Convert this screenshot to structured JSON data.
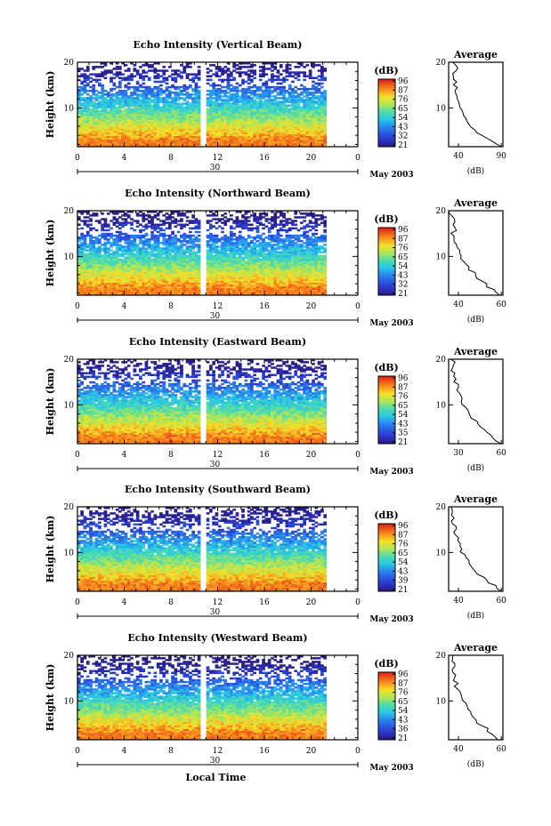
{
  "chart_data": [
    {
      "type": "heatmap",
      "title": "Echo Intensity (Vertical Beam)",
      "ylabel": "Height (km)",
      "xlabel": "",
      "x_ticks": [
        "0",
        "4",
        "8",
        "12",
        "16",
        "20",
        "0"
      ],
      "x_range": [
        0,
        24
      ],
      "data_x_range": [
        0,
        21.3
      ],
      "gap_x": 10.7,
      "y_range": [
        1.5,
        20
      ],
      "y_ticks": [
        "20",
        "10"
      ],
      "date_marker": "30",
      "date_label": "May 2003",
      "colorbar": {
        "label": "(dB)",
        "ticks": [
          "96",
          "87",
          "76",
          "65",
          "54",
          "43",
          "32",
          "21"
        ]
      },
      "profile": {
        "title": "Average",
        "xlabel": "(dB)",
        "x_ticks": [
          "40",
          "90"
        ],
        "x_range": [
          28,
          92
        ],
        "y_ticks": [
          "20",
          "10"
        ],
        "values": [
          89,
          84,
          80,
          72,
          66,
          62,
          58,
          53,
          51,
          49,
          48,
          46,
          45,
          44,
          42,
          41,
          40,
          39,
          38,
          37,
          36,
          38,
          35,
          37,
          34,
          35,
          33,
          36,
          40,
          36,
          34
        ]
      }
    },
    {
      "type": "heatmap",
      "title": "Echo Intensity (Northward Beam)",
      "ylabel": "Height (km)",
      "xlabel": "",
      "x_ticks": [
        "0",
        "4",
        "8",
        "12",
        "16",
        "20",
        "0"
      ],
      "x_range": [
        0,
        24
      ],
      "data_x_range": [
        0,
        21.3
      ],
      "gap_x": 10.7,
      "y_range": [
        1.5,
        20
      ],
      "y_ticks": [
        "20",
        "10"
      ],
      "date_marker": "30",
      "date_label": "May 2003",
      "colorbar": {
        "label": "(dB)",
        "ticks": [
          "96",
          "87",
          "76",
          "65",
          "54",
          "43",
          "32",
          "21"
        ]
      },
      "profile": {
        "title": "Average",
        "xlabel": "(dB)",
        "x_ticks": [
          "40",
          "60"
        ],
        "x_range": [
          27,
          62
        ],
        "y_ticks": [
          "20",
          "10"
        ],
        "values": [
          60,
          57,
          55,
          52,
          52,
          48,
          46,
          44,
          43,
          41,
          40,
          38,
          37,
          36,
          36,
          35,
          34,
          33,
          33,
          32,
          31,
          31,
          30,
          32,
          30,
          29,
          30,
          31,
          30,
          29,
          28
        ]
      }
    },
    {
      "type": "heatmap",
      "title": "Echo Intensity (Eastward Beam)",
      "ylabel": "Height (km)",
      "xlabel": "",
      "x_ticks": [
        "0",
        "4",
        "8",
        "12",
        "16",
        "20",
        "0"
      ],
      "x_range": [
        0,
        24
      ],
      "data_x_range": [
        0,
        21.3
      ],
      "gap_x": 10.7,
      "y_range": [
        1.5,
        20
      ],
      "y_ticks": [
        "20",
        "10"
      ],
      "date_marker": "30",
      "date_label": "May 2003",
      "colorbar": {
        "label": "(dB)",
        "ticks": [
          "96",
          "87",
          "76",
          "65",
          "54",
          "43",
          "35",
          "21"
        ]
      },
      "profile": {
        "title": "Average",
        "xlabel": "(dB)",
        "x_ticks": [
          "30",
          "60"
        ],
        "x_range": [
          27,
          62
        ],
        "y_ticks": [
          "20",
          "10"
        ],
        "values": [
          60,
          58,
          57,
          54,
          52,
          49,
          47,
          45,
          44,
          42,
          41,
          40,
          38,
          37,
          36,
          36,
          35,
          34,
          33,
          33,
          32,
          32,
          31,
          32,
          30,
          31,
          30,
          31,
          30,
          30,
          29
        ]
      }
    },
    {
      "type": "heatmap",
      "title": "Echo Intensity (Southward Beam)",
      "ylabel": "Height (km)",
      "xlabel": "",
      "x_ticks": [
        "0",
        "4",
        "8",
        "12",
        "16",
        "20",
        "0"
      ],
      "x_range": [
        0,
        24
      ],
      "data_x_range": [
        0,
        21.3
      ],
      "gap_x": 10.7,
      "y_range": [
        1.5,
        20
      ],
      "y_ticks": [
        "20",
        "10"
      ],
      "date_marker": "30",
      "date_label": "May 2003",
      "colorbar": {
        "label": "(dB)",
        "ticks": [
          "96",
          "87",
          "76",
          "65",
          "54",
          "43",
          "39",
          "21"
        ]
      },
      "profile": {
        "title": "Average",
        "xlabel": "(dB)",
        "x_ticks": [
          "40",
          "60"
        ],
        "x_range": [
          27,
          62
        ],
        "y_ticks": [
          "20",
          "10"
        ],
        "values": [
          60,
          58,
          56,
          53,
          52,
          49,
          47,
          45,
          43,
          42,
          41,
          39,
          38,
          37,
          36,
          36,
          35,
          34,
          33,
          32,
          32,
          31,
          31,
          32,
          30,
          30,
          31,
          30,
          29,
          30,
          29
        ]
      }
    },
    {
      "type": "heatmap",
      "title": "Echo Intensity (Westward Beam)",
      "ylabel": "Height (km)",
      "xlabel": "Local Time",
      "x_ticks": [
        "0",
        "4",
        "8",
        "12",
        "16",
        "20",
        "0"
      ],
      "x_range": [
        0,
        24
      ],
      "data_x_range": [
        0,
        21.3
      ],
      "gap_x": 10.7,
      "y_range": [
        1.5,
        20
      ],
      "y_ticks": [
        "20",
        "10"
      ],
      "date_marker": "30",
      "date_label": "May 2003",
      "colorbar": {
        "label": "(dB)",
        "ticks": [
          "96",
          "87",
          "76",
          "65",
          "54",
          "43",
          "36",
          "21"
        ]
      },
      "profile": {
        "title": "Average",
        "xlabel": "(dB)",
        "x_ticks": [
          "40",
          "60"
        ],
        "x_range": [
          27,
          62
        ],
        "y_ticks": [
          "20",
          "10"
        ],
        "values": [
          60,
          58,
          55,
          53,
          51,
          48,
          46,
          45,
          43,
          41,
          40,
          39,
          38,
          37,
          36,
          35,
          34,
          34,
          33,
          32,
          32,
          31,
          31,
          32,
          30,
          30,
          31,
          30,
          30,
          29,
          29
        ]
      }
    }
  ]
}
